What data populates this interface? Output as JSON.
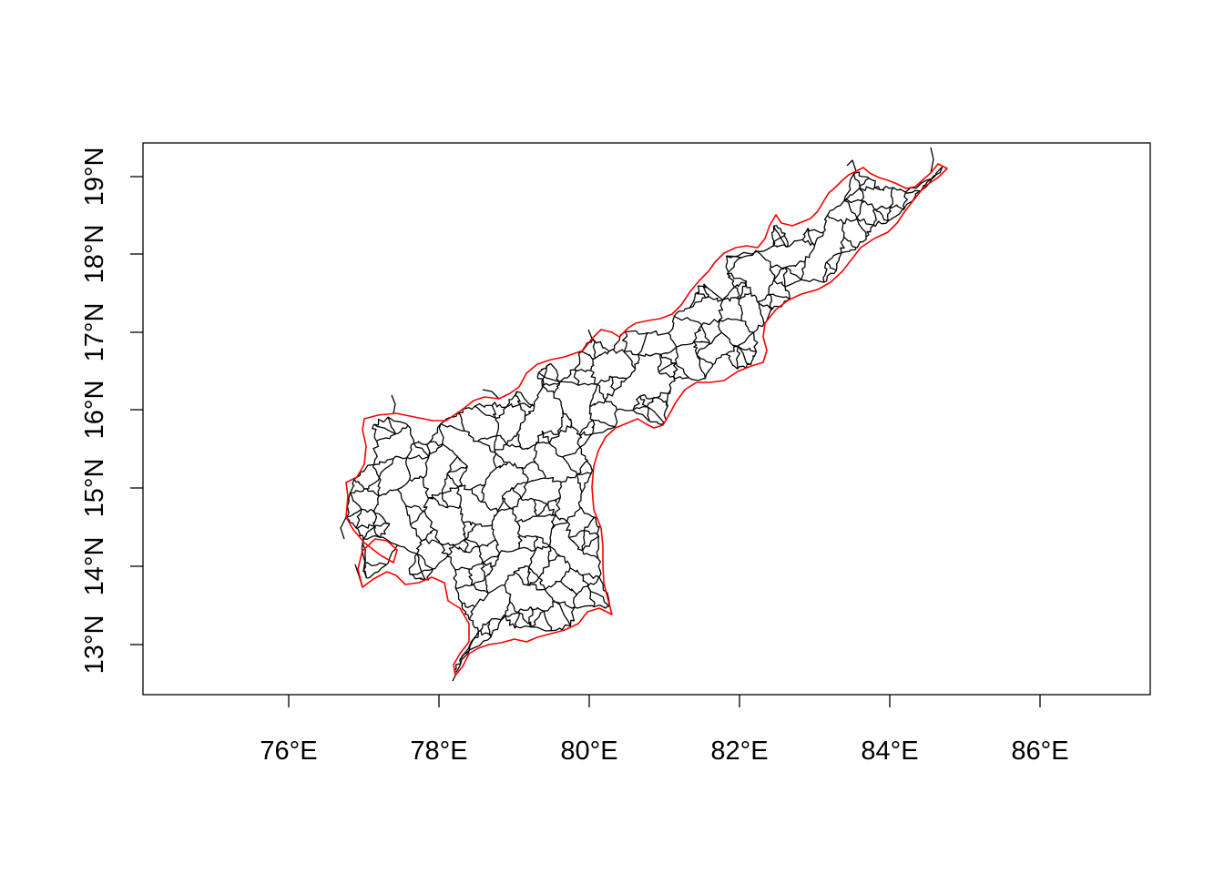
{
  "map": {
    "border_color": "#ff0000",
    "road_color": "#000000",
    "frame_color": "#000000",
    "background": "#ffffff",
    "x_ticks": [
      "76°E",
      "78°E",
      "80°E",
      "82°E",
      "84°E",
      "86°E"
    ],
    "y_ticks": [
      "13°N",
      "14°N",
      "15°N",
      "16°N",
      "17°N",
      "18°N",
      "19°N"
    ]
  }
}
